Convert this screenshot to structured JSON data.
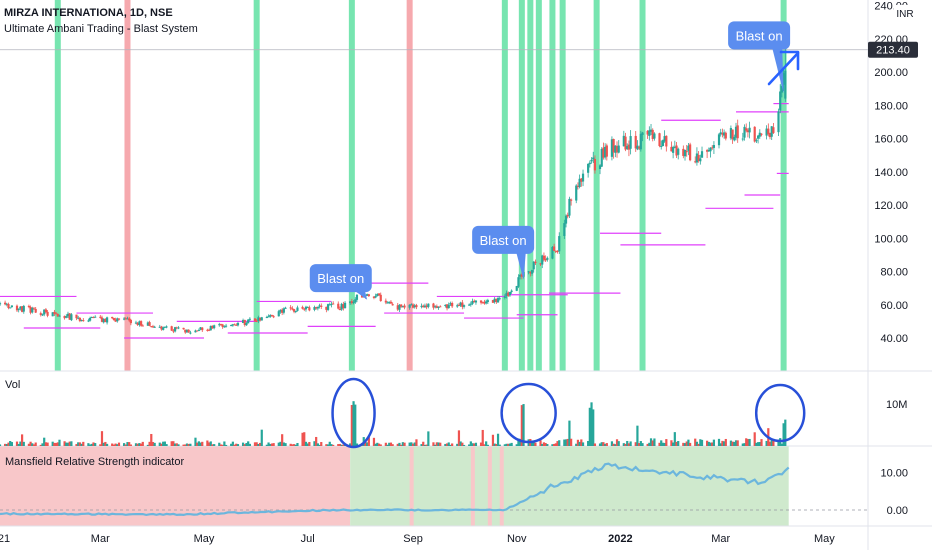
{
  "header": {
    "title": "MIRZA INTERNATIONA, 1D, NSE",
    "subtitle": "Ultimate Ambani Trading - Blast System"
  },
  "currency": "INR",
  "last_price": "213.40",
  "colors": {
    "up": "#26a69a",
    "down": "#ef5350",
    "green_band": "#5fe0a2",
    "red_band": "#f59aa0",
    "callout": "#5b8def",
    "marker": "#e040fb",
    "mrs_line": "#6cb6dd",
    "arrow": "#2962ff",
    "ellipse": "#2850d8"
  },
  "chart_data": [
    {
      "type": "candlestick",
      "title": "MIRZA INTERNATIONA, 1D, NSE",
      "ylim": [
        20,
        240
      ],
      "y_ticks": [
        "40.00",
        "60.00",
        "80.00",
        "100.00",
        "120.00",
        "140.00",
        "160.00",
        "180.00",
        "200.00",
        "220.00",
        "240.00"
      ],
      "x_ticks": [
        "21",
        "Mar",
        "May",
        "Jul",
        "Sep",
        "Nov",
        "2022",
        "Mar",
        "May"
      ],
      "approx_close_path": [
        {
          "date": "2021-01-01",
          "close": 60
        },
        {
          "date": "2021-02-15",
          "close": 52
        },
        {
          "date": "2021-03-20",
          "close": 50
        },
        {
          "date": "2021-04-20",
          "close": 44
        },
        {
          "date": "2021-05-20",
          "close": 48
        },
        {
          "date": "2021-06-20",
          "close": 57
        },
        {
          "date": "2021-07-20",
          "close": 59
        },
        {
          "date": "2021-08-05",
          "close": 67
        },
        {
          "date": "2021-08-25",
          "close": 58
        },
        {
          "date": "2021-09-25",
          "close": 60
        },
        {
          "date": "2021-10-25",
          "close": 64
        },
        {
          "date": "2021-11-05",
          "close": 78
        },
        {
          "date": "2021-11-25",
          "close": 95
        },
        {
          "date": "2021-12-05",
          "close": 130
        },
        {
          "date": "2021-12-25",
          "close": 155
        },
        {
          "date": "2022-01-20",
          "close": 160
        },
        {
          "date": "2022-02-15",
          "close": 150
        },
        {
          "date": "2022-03-10",
          "close": 165
        },
        {
          "date": "2022-04-01",
          "close": 162
        },
        {
          "date": "2022-04-10",
          "close": 213.4
        }
      ],
      "signal_bands": [
        {
          "color": "green",
          "date": "2021-02-04"
        },
        {
          "color": "red",
          "date": "2021-03-17"
        },
        {
          "color": "green",
          "date": "2021-06-01"
        },
        {
          "color": "green",
          "date": "2021-07-27"
        },
        {
          "color": "red",
          "date": "2021-08-30"
        },
        {
          "color": "green",
          "date": "2021-10-25"
        },
        {
          "color": "green",
          "date": "2021-11-04"
        },
        {
          "color": "green",
          "date": "2021-11-09"
        },
        {
          "color": "green",
          "date": "2021-11-14"
        },
        {
          "color": "green",
          "date": "2021-11-22"
        },
        {
          "color": "green",
          "date": "2021-11-28"
        },
        {
          "color": "green",
          "date": "2021-12-18"
        },
        {
          "color": "green",
          "date": "2022-01-14"
        },
        {
          "color": "green",
          "date": "2022-04-07"
        }
      ],
      "annotations": [
        {
          "text": "Blast on",
          "date": "2021-07-24",
          "price": 76
        },
        {
          "text": "Blast on",
          "date": "2021-10-24",
          "price": 99
        },
        {
          "text": "Blast on",
          "date": "2022-04-02",
          "price": 222
        }
      ]
    },
    {
      "type": "bar",
      "title": "Vol",
      "y_ticks": [
        "10M"
      ],
      "peaks": [
        {
          "date": "2021-07-28",
          "value": 12.5
        },
        {
          "date": "2021-11-05",
          "value": 10.0
        },
        {
          "date": "2021-12-15",
          "value": 11.0
        },
        {
          "date": "2022-04-08",
          "value": 6.5
        }
      ]
    },
    {
      "type": "line",
      "title": "Mansfield Relative Strength indicator",
      "y_ticks": [
        "10.00",
        "0.00"
      ],
      "approx_path": [
        {
          "date": "2021-01-01",
          "value": -1.0
        },
        {
          "date": "2021-04-15",
          "value": -1.2
        },
        {
          "date": "2021-07-15",
          "value": 0.0
        },
        {
          "date": "2021-10-25",
          "value": 0.0
        },
        {
          "date": "2021-11-20",
          "value": 6.0
        },
        {
          "date": "2021-12-25",
          "value": 12.0
        },
        {
          "date": "2022-02-15",
          "value": 9.0
        },
        {
          "date": "2022-03-25",
          "value": 7.5
        },
        {
          "date": "2022-04-10",
          "value": 11.0
        }
      ]
    }
  ]
}
